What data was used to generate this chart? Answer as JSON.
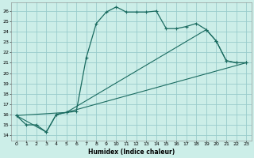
{
  "xlabel": "Humidex (Indice chaleur)",
  "bg_color": "#cceee8",
  "grid_color": "#99cccc",
  "line_color": "#1a6b60",
  "xlim": [
    -0.5,
    23.5
  ],
  "ylim": [
    13.5,
    26.8
  ],
  "yticks": [
    14,
    15,
    16,
    17,
    18,
    19,
    20,
    21,
    22,
    23,
    24,
    25,
    26
  ],
  "xticks": [
    0,
    1,
    2,
    3,
    4,
    5,
    6,
    7,
    8,
    9,
    10,
    11,
    12,
    13,
    14,
    15,
    16,
    17,
    18,
    19,
    20,
    21,
    22,
    23
  ],
  "line1_x": [
    0,
    1,
    2,
    3,
    4,
    5,
    6,
    7,
    8,
    9,
    10,
    11,
    12,
    13,
    14,
    15,
    16,
    17,
    18,
    19,
    20,
    21,
    22,
    23
  ],
  "line1_y": [
    15.9,
    15.0,
    15.0,
    14.3,
    16.0,
    16.2,
    16.3,
    21.5,
    24.8,
    25.9,
    26.4,
    25.9,
    25.9,
    25.9,
    26.0,
    24.3,
    24.3,
    24.5,
    24.8,
    24.2,
    23.1,
    21.2,
    21.0,
    21.0
  ],
  "line2_x": [
    0,
    3,
    4,
    5,
    19,
    20,
    21,
    22,
    23
  ],
  "line2_y": [
    15.9,
    14.3,
    16.0,
    16.2,
    24.2,
    23.1,
    21.2,
    21.0,
    21.0
  ],
  "line3_x": [
    0,
    5,
    23
  ],
  "line3_y": [
    15.9,
    16.2,
    21.0
  ]
}
